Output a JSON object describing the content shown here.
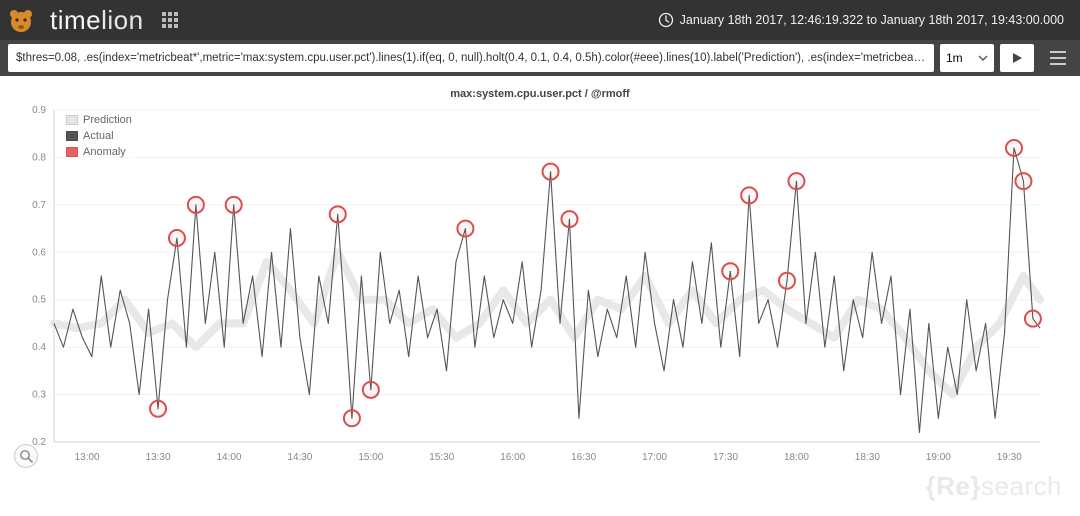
{
  "header": {
    "brand_strong": "time",
    "brand_light": "lion",
    "timerange_label": "January 18th 2017, 12:46:19.322 to January 18th 2017, 19:43:00.000"
  },
  "querybar": {
    "expression": "$thres=0.08, .es(index='metricbeat*',metric='max:system.cpu.user.pct').lines(1).if(eq, 0, null).holt(0.4, 0.1, 0.4, 0.5h).color(#eee).lines(10).label('Prediction'), .es(index='metricbeat*',metr",
    "interval": "1m"
  },
  "chart": {
    "title": "max:system.cpu.user.pct / @rmoff",
    "type": "line",
    "ylim": [
      0.2,
      0.9
    ],
    "ytick_step": 0.1,
    "y_ticks": [
      0.2,
      0.3,
      0.4,
      0.5,
      0.6,
      0.7,
      0.8,
      0.9
    ],
    "x_ticks": [
      "13:00",
      "13:30",
      "14:00",
      "14:30",
      "15:00",
      "15:30",
      "16:00",
      "16:30",
      "17:00",
      "17:30",
      "18:00",
      "18:30",
      "19:00",
      "19:30"
    ],
    "x_domain_minutes": [
      766,
      1183
    ],
    "background_color": "#ffffff",
    "grid_color": "#f0f0f0",
    "axis_color": "#d0d0d0",
    "tick_font_size": 10,
    "tick_color": "#888888",
    "legend": [
      {
        "label": "Prediction",
        "color": "#e6e6e6"
      },
      {
        "label": "Actual",
        "color": "#555555"
      },
      {
        "label": "Anomaly",
        "color": "#e86060"
      }
    ],
    "series": {
      "prediction": {
        "color": "#e6e6e6",
        "line_width": 8,
        "opacity": 0.9,
        "points": [
          [
            766,
            0.45
          ],
          [
            776,
            0.44
          ],
          [
            786,
            0.45
          ],
          [
            796,
            0.5
          ],
          [
            806,
            0.43
          ],
          [
            816,
            0.45
          ],
          [
            826,
            0.4
          ],
          [
            836,
            0.45
          ],
          [
            846,
            0.45
          ],
          [
            856,
            0.58
          ],
          [
            866,
            0.52
          ],
          [
            876,
            0.45
          ],
          [
            886,
            0.6
          ],
          [
            896,
            0.5
          ],
          [
            906,
            0.5
          ],
          [
            916,
            0.45
          ],
          [
            926,
            0.48
          ],
          [
            936,
            0.42
          ],
          [
            946,
            0.45
          ],
          [
            956,
            0.52
          ],
          [
            966,
            0.45
          ],
          [
            976,
            0.5
          ],
          [
            986,
            0.42
          ],
          [
            996,
            0.5
          ],
          [
            1006,
            0.48
          ],
          [
            1016,
            0.55
          ],
          [
            1026,
            0.45
          ],
          [
            1036,
            0.52
          ],
          [
            1046,
            0.45
          ],
          [
            1056,
            0.5
          ],
          [
            1066,
            0.52
          ],
          [
            1076,
            0.48
          ],
          [
            1086,
            0.45
          ],
          [
            1096,
            0.42
          ],
          [
            1106,
            0.5
          ],
          [
            1116,
            0.48
          ],
          [
            1126,
            0.42
          ],
          [
            1136,
            0.35
          ],
          [
            1146,
            0.3
          ],
          [
            1156,
            0.4
          ],
          [
            1166,
            0.45
          ],
          [
            1176,
            0.55
          ],
          [
            1183,
            0.5
          ]
        ]
      },
      "actual": {
        "color": "#555555",
        "line_width": 1.1,
        "points": [
          [
            766,
            0.45
          ],
          [
            770,
            0.4
          ],
          [
            774,
            0.48
          ],
          [
            778,
            0.42
          ],
          [
            782,
            0.38
          ],
          [
            786,
            0.55
          ],
          [
            790,
            0.4
          ],
          [
            794,
            0.52
          ],
          [
            798,
            0.45
          ],
          [
            802,
            0.3
          ],
          [
            806,
            0.48
          ],
          [
            810,
            0.27
          ],
          [
            814,
            0.5
          ],
          [
            818,
            0.63
          ],
          [
            822,
            0.4
          ],
          [
            826,
            0.7
          ],
          [
            830,
            0.45
          ],
          [
            834,
            0.6
          ],
          [
            838,
            0.4
          ],
          [
            842,
            0.7
          ],
          [
            846,
            0.45
          ],
          [
            850,
            0.55
          ],
          [
            854,
            0.38
          ],
          [
            858,
            0.6
          ],
          [
            862,
            0.4
          ],
          [
            866,
            0.65
          ],
          [
            870,
            0.42
          ],
          [
            874,
            0.3
          ],
          [
            878,
            0.55
          ],
          [
            882,
            0.45
          ],
          [
            886,
            0.68
          ],
          [
            890,
            0.4
          ],
          [
            892,
            0.25
          ],
          [
            896,
            0.55
          ],
          [
            900,
            0.31
          ],
          [
            904,
            0.6
          ],
          [
            908,
            0.45
          ],
          [
            912,
            0.52
          ],
          [
            916,
            0.38
          ],
          [
            920,
            0.55
          ],
          [
            924,
            0.42
          ],
          [
            928,
            0.48
          ],
          [
            932,
            0.35
          ],
          [
            936,
            0.58
          ],
          [
            940,
            0.65
          ],
          [
            944,
            0.4
          ],
          [
            948,
            0.55
          ],
          [
            952,
            0.42
          ],
          [
            956,
            0.5
          ],
          [
            960,
            0.45
          ],
          [
            964,
            0.58
          ],
          [
            968,
            0.4
          ],
          [
            972,
            0.52
          ],
          [
            976,
            0.77
          ],
          [
            980,
            0.45
          ],
          [
            984,
            0.67
          ],
          [
            988,
            0.25
          ],
          [
            992,
            0.52
          ],
          [
            996,
            0.38
          ],
          [
            1000,
            0.48
          ],
          [
            1004,
            0.42
          ],
          [
            1008,
            0.55
          ],
          [
            1012,
            0.4
          ],
          [
            1016,
            0.6
          ],
          [
            1020,
            0.45
          ],
          [
            1024,
            0.35
          ],
          [
            1028,
            0.5
          ],
          [
            1032,
            0.4
          ],
          [
            1036,
            0.58
          ],
          [
            1040,
            0.45
          ],
          [
            1044,
            0.62
          ],
          [
            1048,
            0.4
          ],
          [
            1052,
            0.56
          ],
          [
            1056,
            0.38
          ],
          [
            1060,
            0.72
          ],
          [
            1064,
            0.45
          ],
          [
            1068,
            0.5
          ],
          [
            1072,
            0.4
          ],
          [
            1076,
            0.54
          ],
          [
            1080,
            0.75
          ],
          [
            1084,
            0.45
          ],
          [
            1088,
            0.6
          ],
          [
            1092,
            0.4
          ],
          [
            1096,
            0.55
          ],
          [
            1100,
            0.35
          ],
          [
            1104,
            0.5
          ],
          [
            1108,
            0.42
          ],
          [
            1112,
            0.6
          ],
          [
            1116,
            0.45
          ],
          [
            1120,
            0.55
          ],
          [
            1124,
            0.3
          ],
          [
            1128,
            0.48
          ],
          [
            1132,
            0.22
          ],
          [
            1136,
            0.45
          ],
          [
            1140,
            0.25
          ],
          [
            1144,
            0.4
          ],
          [
            1148,
            0.3
          ],
          [
            1152,
            0.5
          ],
          [
            1156,
            0.35
          ],
          [
            1160,
            0.45
          ],
          [
            1164,
            0.25
          ],
          [
            1168,
            0.43
          ],
          [
            1172,
            0.82
          ],
          [
            1176,
            0.75
          ],
          [
            1180,
            0.46
          ],
          [
            1183,
            0.44
          ]
        ]
      }
    },
    "anomalies": {
      "marker_stroke": "#d94f4f",
      "marker_fill": "rgba(217,79,79,0.05)",
      "marker_radius": 8,
      "marker_stroke_width": 2,
      "points": [
        [
          810,
          0.27
        ],
        [
          818,
          0.63
        ],
        [
          826,
          0.7
        ],
        [
          842,
          0.7
        ],
        [
          886,
          0.68
        ],
        [
          892,
          0.25
        ],
        [
          900,
          0.31
        ],
        [
          940,
          0.65
        ],
        [
          976,
          0.77
        ],
        [
          984,
          0.67
        ],
        [
          1052,
          0.56
        ],
        [
          1060,
          0.72
        ],
        [
          1076,
          0.54
        ],
        [
          1080,
          0.75
        ],
        [
          1172,
          0.82
        ],
        [
          1176,
          0.75
        ],
        [
          1180,
          0.46
        ]
      ]
    }
  },
  "watermark": {
    "curly_open": "{",
    "re": "Re",
    "curly_close": "}",
    "search": "search"
  }
}
